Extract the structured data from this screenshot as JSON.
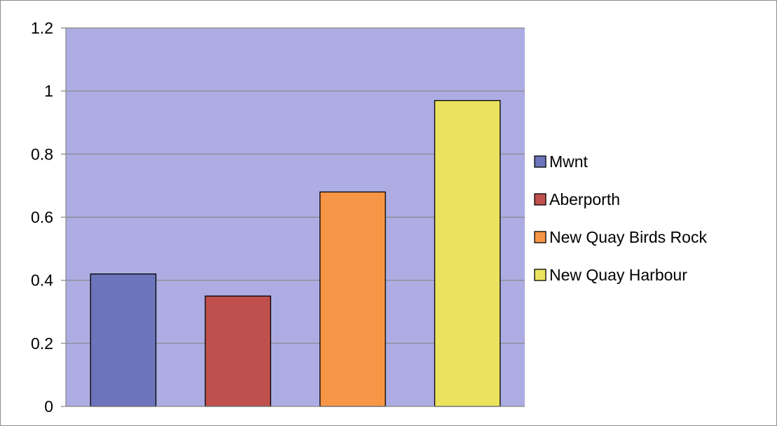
{
  "chart_data": {
    "type": "bar",
    "title": "",
    "xlabel": "",
    "ylabel": "",
    "categories": [
      "Mwnt",
      "Aberporth",
      "New Quay Birds Rock",
      "New Quay Harbour"
    ],
    "values": [
      0.42,
      0.35,
      0.68,
      0.97
    ],
    "colors": [
      "#6c74bb",
      "#c0504d",
      "#f79646",
      "#ebe35f"
    ],
    "ylim": [
      0,
      1.2
    ],
    "yticks": [
      "0",
      "0.2",
      "0.4",
      "0.6",
      "0.8",
      "1",
      "1.2"
    ],
    "grid": true,
    "legend_position": "right",
    "plot_background": "#adade3"
  }
}
